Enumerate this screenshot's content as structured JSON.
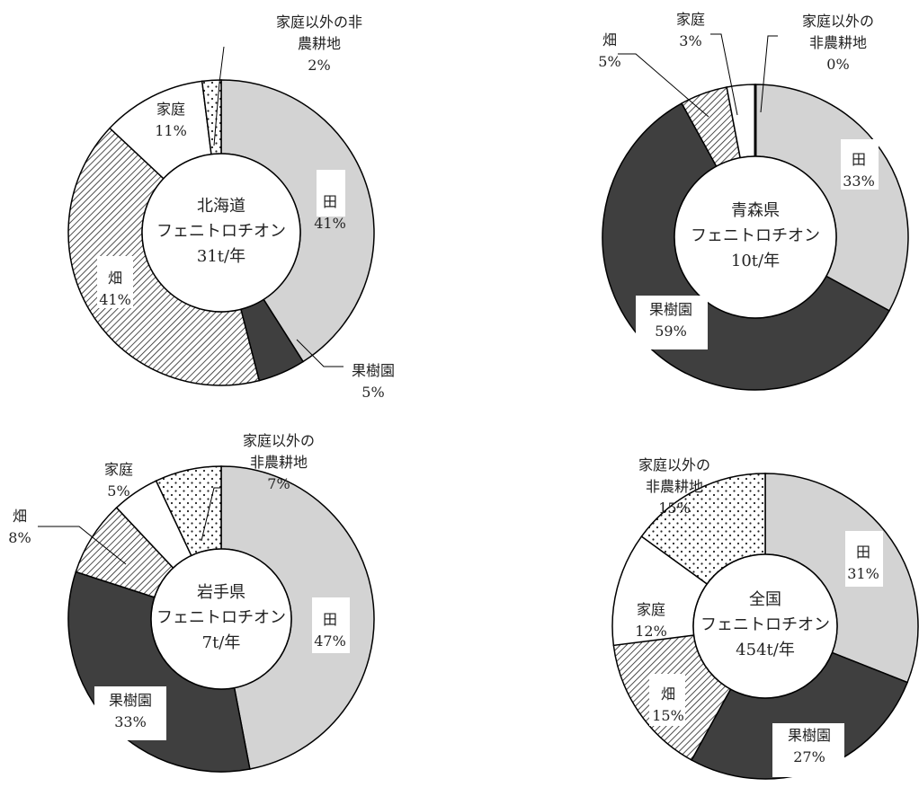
{
  "chart_data": [
    {
      "type": "pie",
      "center_label": [
        "北海道",
        "フェニトロチオン",
        "31t/年"
      ],
      "categories": [
        "田",
        "果樹園",
        "畑",
        "家庭",
        "家庭以外の非農耕地"
      ],
      "values": [
        41,
        5,
        41,
        11,
        2
      ],
      "labels": [
        [
          "田",
          "41%"
        ],
        [
          "果樹園",
          "5%"
        ],
        [
          "畑",
          "41%"
        ],
        [
          "家庭",
          "11%"
        ],
        [
          "家庭以外の非",
          "農耕地",
          "2%"
        ]
      ]
    },
    {
      "type": "pie",
      "center_label": [
        "青森県",
        "フェニトロチオン",
        "10t/年"
      ],
      "categories": [
        "田",
        "果樹園",
        "畑",
        "家庭",
        "家庭以外の非農耕地"
      ],
      "values": [
        33,
        59,
        5,
        3,
        0
      ],
      "labels": [
        [
          "田",
          "33%"
        ],
        [
          "果樹園",
          "59%"
        ],
        [
          "畑",
          "5%"
        ],
        [
          "家庭",
          "3%"
        ],
        [
          "家庭以外の",
          "非農耕地",
          "0%"
        ]
      ]
    },
    {
      "type": "pie",
      "center_label": [
        "岩手県",
        "フェニトロチオン",
        "7t/年"
      ],
      "categories": [
        "田",
        "果樹園",
        "畑",
        "家庭",
        "家庭以外の非農耕地"
      ],
      "values": [
        47,
        33,
        8,
        5,
        7
      ],
      "labels": [
        [
          "田",
          "47%"
        ],
        [
          "果樹園",
          "33%"
        ],
        [
          "畑",
          "8%"
        ],
        [
          "家庭",
          "5%"
        ],
        [
          "家庭以外の",
          "非農耕地",
          "7%"
        ]
      ]
    },
    {
      "type": "pie",
      "center_label": [
        "全国",
        "フェニトロチオン",
        "454t/年"
      ],
      "categories": [
        "田",
        "果樹園",
        "畑",
        "家庭",
        "家庭以外の非農耕地"
      ],
      "values": [
        31,
        27,
        15,
        12,
        15
      ],
      "labels": [
        [
          "田",
          "31%"
        ],
        [
          "果樹園",
          "27%"
        ],
        [
          "畑",
          "15%"
        ],
        [
          "家庭",
          "12%"
        ],
        [
          "家庭以外の",
          "非農耕地",
          "15%"
        ]
      ]
    }
  ],
  "colors": {
    "田": "#d3d3d3",
    "果樹園": "#3f3f3f",
    "畑": "hatch",
    "家庭": "#ffffff",
    "家庭以外の非農耕地": "dots"
  }
}
